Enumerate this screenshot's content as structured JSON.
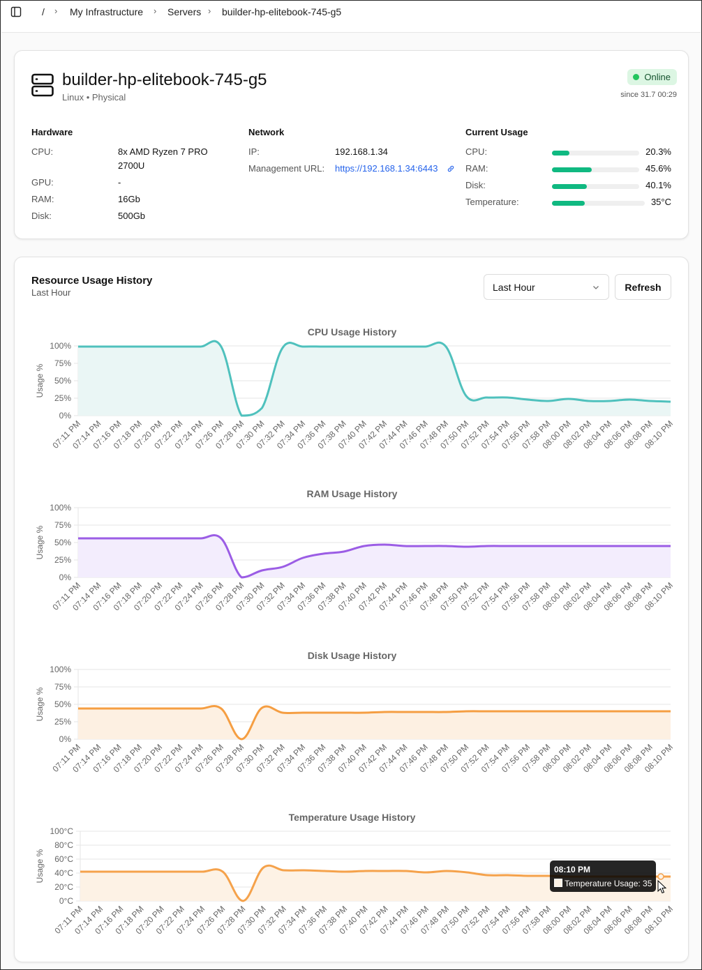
{
  "breadcrumb": {
    "root": "/",
    "items": [
      "My Infrastructure",
      "Servers",
      "builder-hp-elitebook-745-g5"
    ]
  },
  "server": {
    "name": "builder-hp-elitebook-745-g5",
    "subtitle": "Linux • Physical",
    "status": "Online",
    "since": "since 31.7 00:29",
    "status_color": "#22c55e"
  },
  "hardware": {
    "title": "Hardware",
    "rows": [
      {
        "label": "CPU:",
        "value": "8x AMD Ryzen 7 PRO",
        "value2": "2700U"
      },
      {
        "label": "GPU:",
        "value": "-"
      },
      {
        "label": "RAM:",
        "value": "16Gb"
      },
      {
        "label": "Disk:",
        "value": "500Gb"
      }
    ]
  },
  "network": {
    "title": "Network",
    "ip_label": "IP:",
    "ip": "192.168.1.34",
    "mgmt_label": "Management URL:",
    "mgmt_url": "https://192.168.1.34:6443"
  },
  "usage": {
    "title": "Current Usage",
    "bar_color": "#10b981",
    "rows": [
      {
        "label": "CPU:",
        "text": "20.3%",
        "fraction": 0.203
      },
      {
        "label": "RAM:",
        "text": "45.6%",
        "fraction": 0.456
      },
      {
        "label": "Disk:",
        "text": "40.1%",
        "fraction": 0.401
      },
      {
        "label": "Temperature:",
        "text": "35°C",
        "fraction": 0.35
      }
    ]
  },
  "history": {
    "title": "Resource Usage History",
    "subtitle": "Last Hour",
    "range_selected": "Last Hour",
    "refresh_label": "Refresh"
  },
  "tooltip": {
    "time": "08:10 PM",
    "text": "Temperature Usage: 35"
  },
  "chart_data": [
    {
      "type": "area",
      "title": "CPU Usage History",
      "ylabel": "Usage %",
      "color": "#4fc1bd",
      "fill": "#eaf6f5",
      "ylim": [
        0,
        100
      ],
      "yticks": [
        "0%",
        "25%",
        "50%",
        "75%",
        "100%"
      ],
      "x": [
        "07:11 PM",
        "07:14 PM",
        "07:16 PM",
        "07:18 PM",
        "07:20 PM",
        "07:22 PM",
        "07:24 PM",
        "07:26 PM",
        "07:28 PM",
        "07:30 PM",
        "07:32 PM",
        "07:34 PM",
        "07:36 PM",
        "07:38 PM",
        "07:40 PM",
        "07:42 PM",
        "07:44 PM",
        "07:46 PM",
        "07:48 PM",
        "07:50 PM",
        "07:52 PM",
        "07:54 PM",
        "07:56 PM",
        "07:58 PM",
        "08:00 PM",
        "08:02 PM",
        "08:04 PM",
        "08:06 PM",
        "08:08 PM",
        "08:10 PM"
      ],
      "values": [
        99,
        99,
        99,
        99,
        99,
        99,
        99,
        99,
        0,
        11,
        97,
        99,
        99,
        99,
        99,
        99,
        99,
        99,
        99,
        28,
        26,
        26,
        23,
        21,
        24,
        21,
        21,
        23,
        21,
        20
      ]
    },
    {
      "type": "area",
      "title": "RAM Usage History",
      "ylabel": "Usage %",
      "color": "#9b5de5",
      "fill": "#f3edfd",
      "ylim": [
        0,
        100
      ],
      "yticks": [
        "0%",
        "25%",
        "50%",
        "75%",
        "100%"
      ],
      "x": [
        "07:11 PM",
        "07:14 PM",
        "07:16 PM",
        "07:18 PM",
        "07:20 PM",
        "07:22 PM",
        "07:24 PM",
        "07:26 PM",
        "07:28 PM",
        "07:30 PM",
        "07:32 PM",
        "07:34 PM",
        "07:36 PM",
        "07:38 PM",
        "07:40 PM",
        "07:42 PM",
        "07:44 PM",
        "07:46 PM",
        "07:48 PM",
        "07:50 PM",
        "07:52 PM",
        "07:54 PM",
        "07:56 PM",
        "07:58 PM",
        "08:00 PM",
        "08:02 PM",
        "08:04 PM",
        "08:06 PM",
        "08:08 PM",
        "08:10 PM"
      ],
      "values": [
        56,
        56,
        56,
        56,
        56,
        56,
        56,
        56,
        0,
        10,
        15,
        28,
        34,
        37,
        45,
        47,
        45,
        45,
        45,
        44,
        45,
        45,
        45,
        45,
        45,
        45,
        45,
        45,
        45,
        45
      ]
    },
    {
      "type": "area",
      "title": "Disk Usage History",
      "ylabel": "Usage %",
      "color": "#f59e42",
      "fill": "#fdf0e2",
      "ylim": [
        0,
        100
      ],
      "yticks": [
        "0%",
        "25%",
        "50%",
        "75%",
        "100%"
      ],
      "x": [
        "07:11 PM",
        "07:14 PM",
        "07:16 PM",
        "07:18 PM",
        "07:20 PM",
        "07:22 PM",
        "07:24 PM",
        "07:26 PM",
        "07:28 PM",
        "07:30 PM",
        "07:32 PM",
        "07:34 PM",
        "07:36 PM",
        "07:38 PM",
        "07:40 PM",
        "07:42 PM",
        "07:44 PM",
        "07:46 PM",
        "07:48 PM",
        "07:50 PM",
        "07:52 PM",
        "07:54 PM",
        "07:56 PM",
        "07:58 PM",
        "08:00 PM",
        "08:02 PM",
        "08:04 PM",
        "08:06 PM",
        "08:08 PM",
        "08:10 PM"
      ],
      "values": [
        44,
        44,
        44,
        44,
        44,
        44,
        44,
        44,
        0,
        45,
        38,
        38,
        38,
        38,
        38,
        39,
        39,
        39,
        39,
        40,
        40,
        40,
        40,
        40,
        40,
        40,
        40,
        40,
        40,
        40
      ]
    },
    {
      "type": "area",
      "title": "Temperature Usage History",
      "ylabel": "Usage %",
      "color": "#f5a24b",
      "fill": "#fdf2e5",
      "ylim": [
        0,
        100
      ],
      "yticks": [
        "0°C",
        "20°C",
        "40°C",
        "60°C",
        "80°C",
        "100°C"
      ],
      "x": [
        "07:11 PM",
        "07:14 PM",
        "07:16 PM",
        "07:18 PM",
        "07:20 PM",
        "07:22 PM",
        "07:24 PM",
        "07:26 PM",
        "07:28 PM",
        "07:30 PM",
        "07:32 PM",
        "07:34 PM",
        "07:36 PM",
        "07:38 PM",
        "07:40 PM",
        "07:42 PM",
        "07:44 PM",
        "07:46 PM",
        "07:48 PM",
        "07:50 PM",
        "07:52 PM",
        "07:54 PM",
        "07:56 PM",
        "07:58 PM",
        "08:00 PM",
        "08:02 PM",
        "08:04 PM",
        "08:06 PM",
        "08:08 PM",
        "08:10 PM"
      ],
      "values": [
        42,
        42,
        42,
        42,
        42,
        42,
        42,
        42,
        0,
        48,
        44,
        44,
        43,
        42,
        43,
        43,
        43,
        41,
        43,
        41,
        37,
        37,
        36,
        36,
        35,
        35,
        35,
        35,
        35,
        35
      ]
    }
  ]
}
